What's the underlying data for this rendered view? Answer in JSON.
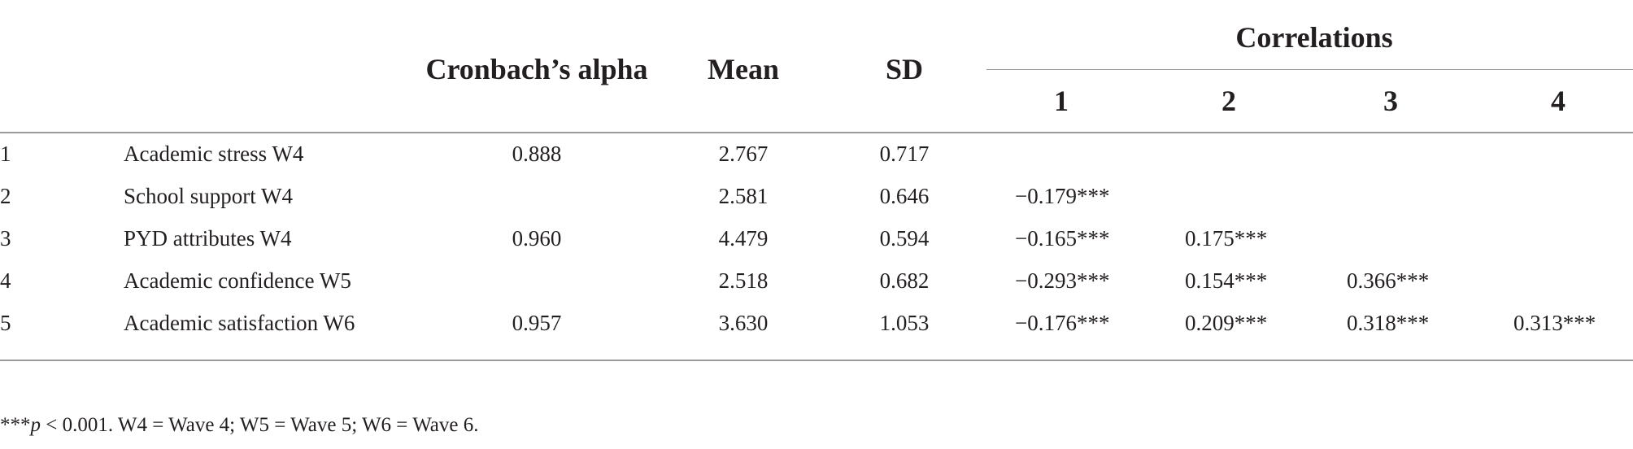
{
  "table": {
    "headers": {
      "alpha": "Cronbach’s alpha",
      "mean": "Mean",
      "sd": "SD",
      "correlations": "Correlations",
      "corr_cols": [
        "1",
        "2",
        "3",
        "4"
      ]
    },
    "rows": [
      {
        "num": "1",
        "label": "Academic stress W4",
        "alpha": "0.888",
        "mean": "2.767",
        "sd": "0.717",
        "corr": [
          "",
          "",
          "",
          ""
        ]
      },
      {
        "num": "2",
        "label": "School support W4",
        "alpha": "",
        "mean": "2.581",
        "sd": "0.646",
        "corr": [
          "−0.179***",
          "",
          "",
          ""
        ]
      },
      {
        "num": "3",
        "label": "PYD attributes W4",
        "alpha": "0.960",
        "mean": "4.479",
        "sd": "0.594",
        "corr": [
          "−0.165***",
          "0.175***",
          "",
          ""
        ]
      },
      {
        "num": "4",
        "label": "Academic confidence W5",
        "alpha": "",
        "mean": "2.518",
        "sd": "0.682",
        "corr": [
          "−0.293***",
          "0.154***",
          "0.366***",
          ""
        ]
      },
      {
        "num": "5",
        "label": "Academic satisfaction W6",
        "alpha": "0.957",
        "mean": "3.630",
        "sd": "1.053",
        "corr": [
          "−0.176***",
          "0.209***",
          "0.318***",
          "0.313***"
        ]
      }
    ]
  },
  "footnote": {
    "stars": "***",
    "p": "p",
    "rest": " < 0.001. W4 = Wave 4; W5 = Wave 5; W6 = Wave 6."
  }
}
